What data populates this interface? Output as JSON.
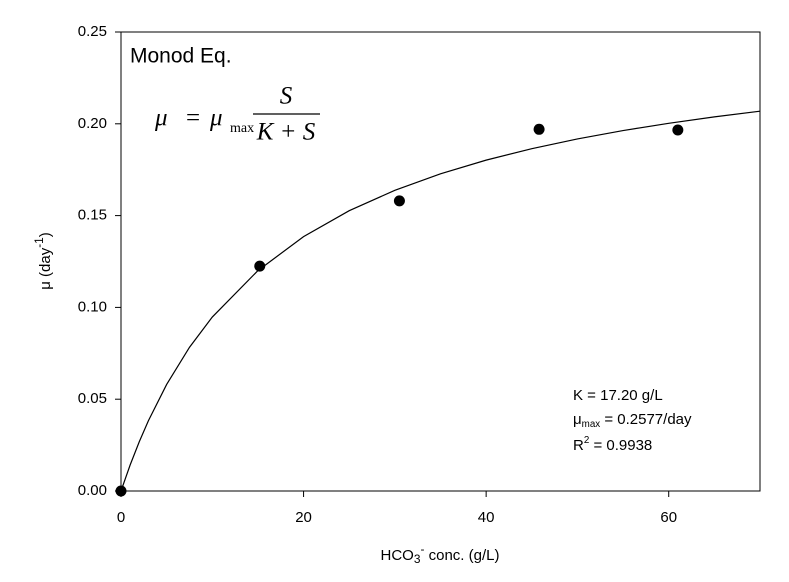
{
  "chart_data": {
    "type": "scatter",
    "xlabel": [
      "HCO",
      "3",
      "-",
      " conc. (g/L)"
    ],
    "ylabel": [
      "μ (day",
      "-1",
      ")"
    ],
    "xlim": [
      0,
      70
    ],
    "ylim": [
      0,
      0.25
    ],
    "xticks": [
      0,
      20,
      40,
      60
    ],
    "yticks": [
      {
        "value": 0,
        "label": "0.00"
      },
      {
        "value": 0.05,
        "label": "0.05"
      },
      {
        "value": 0.1,
        "label": "0.10"
      },
      {
        "value": 0.15,
        "label": "0.15"
      },
      {
        "value": 0.2,
        "label": "0.20"
      },
      {
        "value": 0.25,
        "label": "0.25"
      }
    ],
    "series": [
      {
        "color": "#000000",
        "x": [
          0,
          15.2,
          30.5,
          45.8,
          61.0
        ],
        "values": [
          0,
          0.1225,
          0.158,
          0.197,
          0.1966
        ]
      }
    ],
    "fit": {
      "color": "#000000",
      "x": [
        0,
        1,
        2,
        3,
        5,
        7.5,
        10,
        15,
        20,
        25,
        30,
        35,
        40,
        45,
        50,
        55,
        60,
        65,
        70
      ],
      "values": [
        0,
        0.01416,
        0.02684,
        0.03827,
        0.05804,
        0.07825,
        0.09474,
        0.12005,
        0.13855,
        0.15267,
        0.16379,
        0.17279,
        0.18021,
        0.18644,
        0.19174,
        0.19631,
        0.20028,
        0.20378,
        0.20687
      ]
    },
    "title": "Monod Eq.",
    "equation": [
      "μ",
      "=",
      "μ",
      "max",
      "S",
      "K + S"
    ],
    "fit_stats": [
      [
        "K = 17.20 g/L"
      ],
      [
        "μ",
        "max",
        " = 0.2577/day"
      ],
      [
        "R",
        "2",
        " = 0.9938"
      ]
    ]
  }
}
